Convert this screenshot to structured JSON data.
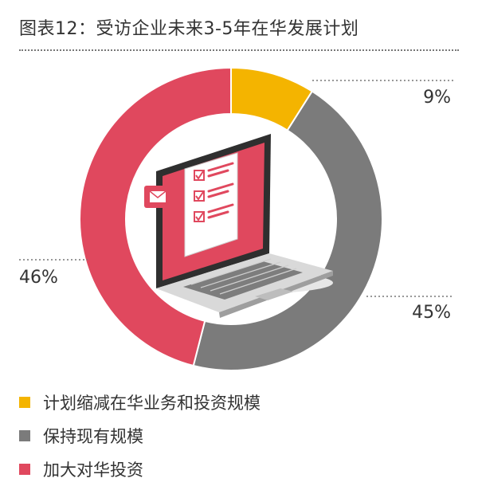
{
  "title": "图表12：受访企业未来3-5年在华发展计划",
  "colors": {
    "reduce": "#F4B400",
    "maintain": "#7B7B7B",
    "increase": "#E0485E",
    "text": "#333333",
    "dotted_rule": "#777777"
  },
  "chart_data": {
    "type": "pie",
    "style": "donut",
    "title": "图表12：受访企业未来3-5年在华发展计划",
    "categories": [
      "计划缩减在华业务和投资规模",
      "保持现有规模",
      "加大对华投资"
    ],
    "values": [
      9,
      45,
      46
    ],
    "value_labels": [
      "9%",
      "45%",
      "46%"
    ],
    "unit": "%",
    "legend_placement": "bottom-left",
    "center_illustration": "laptop-checklist-icon"
  }
}
